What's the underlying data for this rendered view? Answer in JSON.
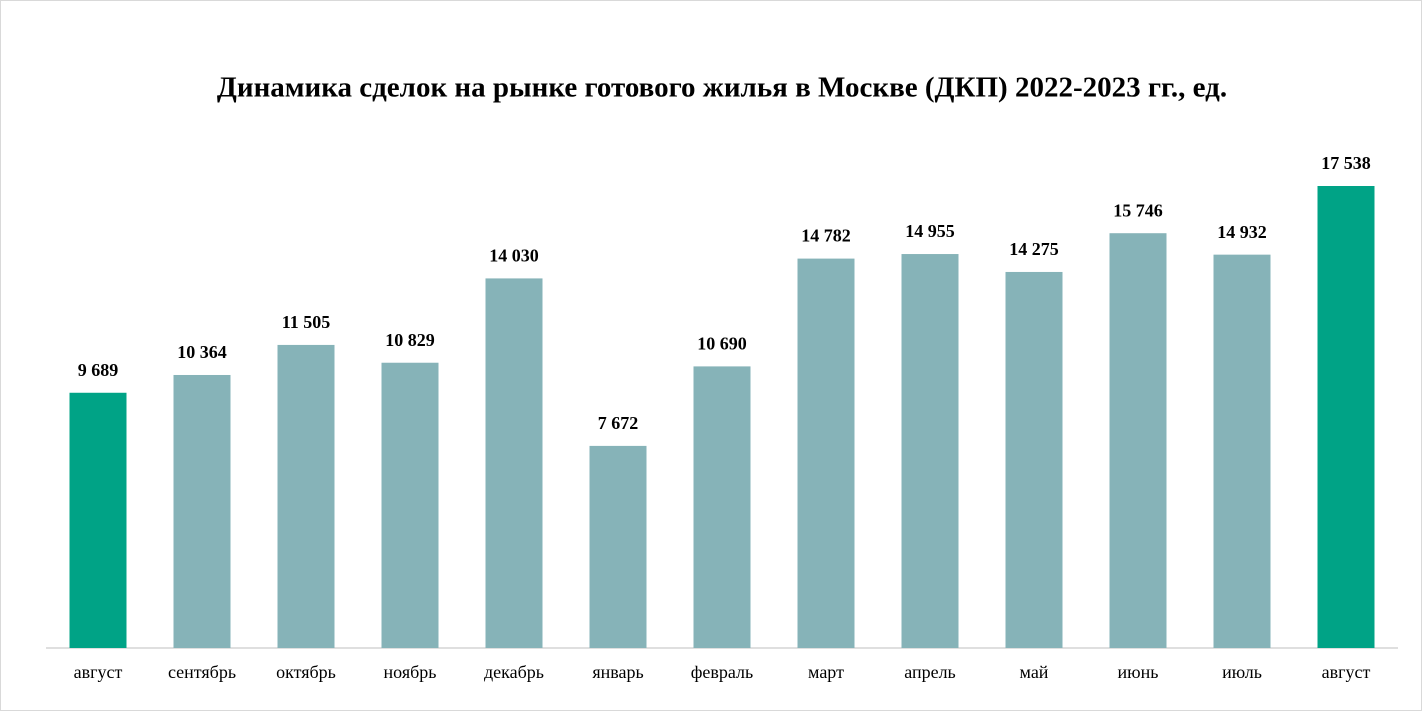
{
  "chart_data": {
    "type": "bar",
    "title": "Динамика сделок на рынке готового жилья в Москве (ДКП) 2022-2023 гг., ед.",
    "categories": [
      "август",
      "сентябрь",
      "октябрь",
      "ноябрь",
      "декабрь",
      "январь",
      "февраль",
      "март",
      "апрель",
      "май",
      "июнь",
      "июль",
      "август"
    ],
    "values": [
      9689,
      10364,
      11505,
      10829,
      14030,
      7672,
      10690,
      14782,
      14955,
      14275,
      15746,
      14932,
      17538
    ],
    "value_labels": [
      "9 689",
      "10 364",
      "11 505",
      "10 829",
      "14 030",
      "7 672",
      "10 690",
      "14 782",
      "14 955",
      "14 275",
      "15 746",
      "14 932",
      "17 538"
    ],
    "colors": [
      "#00a386",
      "#86b3b8",
      "#86b3b8",
      "#86b3b8",
      "#86b3b8",
      "#86b3b8",
      "#86b3b8",
      "#86b3b8",
      "#86b3b8",
      "#86b3b8",
      "#86b3b8",
      "#86b3b8",
      "#00a386"
    ]
  }
}
